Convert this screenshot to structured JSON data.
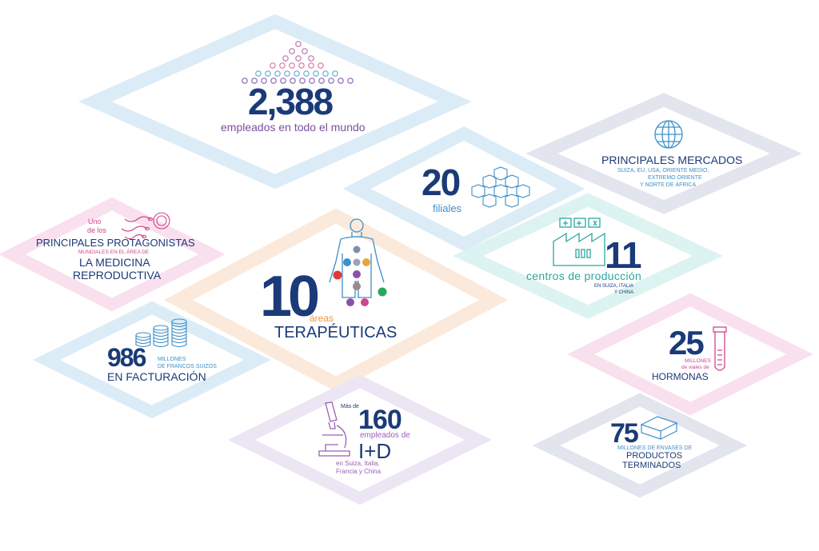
{
  "employees": {
    "number": "2,388",
    "caption": "empleados en todo el mundo"
  },
  "markets": {
    "title": "PRINCIPALES MERCADOS",
    "line1": "SUIZA, EU, USA, ORIENTE MEDIO,",
    "line2": "EXTREMO ORIENTE",
    "line3": "Y NORTE DE ÁFRICA"
  },
  "subsidiaries": {
    "number": "20",
    "caption": "filiales"
  },
  "reproductive": {
    "line1": "Uno",
    "line2": "de los",
    "line3": "PRINCIPALES PROTAGONISTAS",
    "line4": "MUNDIALES EN EL ÁREA DE",
    "line5": "LA MEDICINA",
    "line6": "REPRODUCTIVA"
  },
  "production": {
    "number": "11",
    "caption": "centros de producción",
    "line1": "EN SUIZA, ITALIA",
    "line2": "Y CHINA"
  },
  "therapeutic": {
    "number": "10",
    "caption1": "áreas",
    "caption2": "TERAPÉUTICAS"
  },
  "revenue": {
    "number": "986",
    "line1": "MILLONES",
    "line2": "DE FRANCOS SUIZOS",
    "line3": "EN FACTURACIÓN"
  },
  "hormones": {
    "number": "25",
    "line1": "MILLONES",
    "line2": "de viales de",
    "line3": "HORMONAS"
  },
  "research": {
    "prefix": "Más de",
    "number": "160",
    "line1": "empleados de",
    "line2": "I+D",
    "line3": "en Suiza, Italia,",
    "line4": "Francia y China"
  },
  "products": {
    "number": "75",
    "line1": "MILLONES DE ENVASES DE",
    "line2": "PRODUCTOS",
    "line3": "TERMINADOS"
  },
  "colors": {
    "navy": "#1b3a78",
    "purple": "#7b4fa0",
    "teal": "#2aa7a0",
    "blue": "#3e8fc9",
    "orange": "#e8963c",
    "pink": "#d0448a"
  }
}
